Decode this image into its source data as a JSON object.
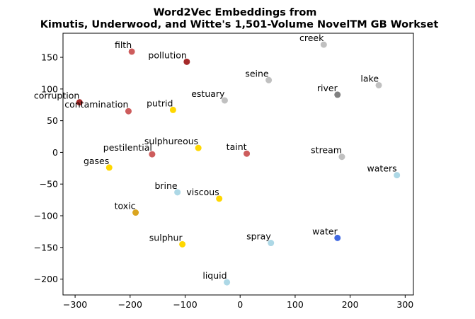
{
  "chart_data": {
    "type": "scatter",
    "title_lines": [
      "Word2Vec Embeddings from",
      "Kimutis, Underwood, and Witte's 1,501-Volume NovelTM GB Workset"
    ],
    "xlabel": "",
    "ylabel": "",
    "xlim": [
      -322,
      315
    ],
    "ylim": [
      -225,
      188
    ],
    "x_ticks": [
      -300,
      -200,
      -100,
      0,
      100,
      200,
      300
    ],
    "x_tick_labels": [
      "−300",
      "−200",
      "−100",
      "0",
      "100",
      "200",
      "300"
    ],
    "y_ticks": [
      150,
      100,
      50,
      0,
      -50,
      -100,
      -150,
      -200
    ],
    "y_tick_labels": [
      "150",
      "100",
      "50",
      "0",
      "−50",
      "−100",
      "−150",
      "−200"
    ],
    "grid": false,
    "legend": "none",
    "points": [
      {
        "word": "filth",
        "x": -197,
        "y": 159,
        "color": "#cd5c5c"
      },
      {
        "word": "pollution",
        "x": -97,
        "y": 143,
        "color": "#a52a2a"
      },
      {
        "word": "creek",
        "x": 152,
        "y": 170,
        "color": "#c0c0c0"
      },
      {
        "word": "seine",
        "x": 52,
        "y": 114,
        "color": "#c0c0c0"
      },
      {
        "word": "lake",
        "x": 252,
        "y": 106,
        "color": "#c0c0c0"
      },
      {
        "word": "river",
        "x": 177,
        "y": 91,
        "color": "#808080"
      },
      {
        "word": "estuary",
        "x": -28,
        "y": 82,
        "color": "#c0c0c0"
      },
      {
        "word": "corruption",
        "x": -292,
        "y": 79,
        "color": "#a52a2a"
      },
      {
        "word": "contamination",
        "x": -203,
        "y": 65,
        "color": "#cd5c5c"
      },
      {
        "word": "putrid",
        "x": -122,
        "y": 67,
        "color": "#ffd700"
      },
      {
        "word": "sulphureous",
        "x": -76,
        "y": 7,
        "color": "#ffd700"
      },
      {
        "word": "pestilential",
        "x": -160,
        "y": -3,
        "color": "#cd5c5c"
      },
      {
        "word": "taint",
        "x": 12,
        "y": -2,
        "color": "#cd5c5c"
      },
      {
        "word": "stream",
        "x": 185,
        "y": -7,
        "color": "#c0c0c0"
      },
      {
        "word": "gases",
        "x": -238,
        "y": -24,
        "color": "#ffd700"
      },
      {
        "word": "waters",
        "x": 285,
        "y": -36,
        "color": "#add8e6"
      },
      {
        "word": "brine",
        "x": -114,
        "y": -63,
        "color": "#add8e6"
      },
      {
        "word": "viscous",
        "x": -38,
        "y": -73,
        "color": "#ffd700"
      },
      {
        "word": "toxic",
        "x": -190,
        "y": -95,
        "color": "#daa520"
      },
      {
        "word": "water",
        "x": 177,
        "y": -135,
        "color": "#4169e1"
      },
      {
        "word": "spray",
        "x": 56,
        "y": -143,
        "color": "#add8e6"
      },
      {
        "word": "sulphur",
        "x": -105,
        "y": -145,
        "color": "#ffd700"
      },
      {
        "word": "liquid",
        "x": -24,
        "y": -205,
        "color": "#add8e6"
      }
    ]
  }
}
